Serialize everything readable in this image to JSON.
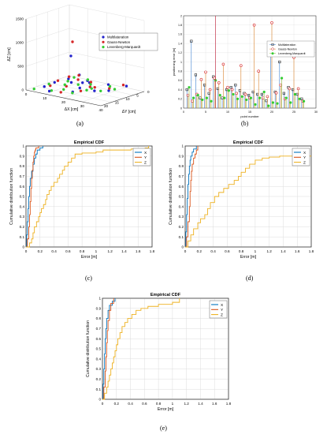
{
  "captions": {
    "a": "(a)",
    "b": "(b)",
    "c": "(c)",
    "d": "(d)",
    "e": "(e)"
  },
  "colors": {
    "multilateration": "#2222cc",
    "gauss_newton": "#d62728",
    "levenberg": "#33cc33",
    "cdf_x": "#0072bd",
    "cdf_y": "#d95319",
    "cdf_z": "#edb120"
  },
  "chart_data": [
    {
      "id": "a",
      "type": "scatter",
      "xlabel": "ΔX [cm]",
      "ylabel": "ΔY [cm]",
      "zlabel": "ΔZ [cm]",
      "xticks": [
        "0",
        "10",
        "20",
        "30",
        "40"
      ],
      "yticks": [
        "0",
        "5",
        "10",
        "15",
        "20"
      ],
      "zticks": [
        "0",
        "500",
        "1000",
        "1500"
      ],
      "xlim": [
        0,
        40
      ],
      "ylim": [
        0,
        20
      ],
      "zlim": [
        0,
        1500
      ],
      "legend_position": "top-right",
      "series": [
        {
          "name": "Multilateration",
          "points": [
            [
              2,
              1,
              450
            ],
            [
              10,
              4,
              160
            ],
            [
              20,
              8,
              140
            ],
            [
              34,
              3,
              110
            ],
            [
              6,
              12,
              90
            ],
            [
              14,
              6,
              60
            ],
            [
              25,
              10,
              40
            ],
            [
              4,
              15,
              30
            ],
            [
              12,
              2,
              25
            ],
            [
              18,
              14,
              20
            ],
            [
              8,
              6,
              15
            ],
            [
              16,
              9,
              10
            ],
            [
              3,
              3,
              5
            ],
            [
              28,
              6,
              8
            ],
            [
              22,
              1,
              12
            ],
            [
              9,
              17,
              6
            ]
          ]
        },
        {
          "name": "Gauss-Newton",
          "points": [
            [
              4,
              2,
              780
            ],
            [
              12,
              6,
              200
            ],
            [
              24,
              9,
              90
            ],
            [
              30,
              1,
              70
            ],
            [
              6,
              14,
              50
            ],
            [
              15,
              3,
              35
            ],
            [
              20,
              12,
              25
            ],
            [
              2,
              7,
              18
            ],
            [
              10,
              10,
              12
            ],
            [
              26,
              4,
              10
            ],
            [
              14,
              16,
              8
            ],
            [
              7,
              2,
              6
            ],
            [
              18,
              6,
              4
            ],
            [
              1,
              1,
              3
            ]
          ]
        },
        {
          "name": "Levenberg-Marquardt",
          "points": [
            [
              6,
              3,
              60
            ],
            [
              14,
              8,
              50
            ],
            [
              22,
              11,
              45
            ],
            [
              30,
              5,
              40
            ],
            [
              3,
              12,
              30
            ],
            [
              11,
              1,
              25
            ],
            [
              19,
              15,
              20
            ],
            [
              26,
              8,
              15
            ],
            [
              8,
              9,
              12
            ],
            [
              16,
              4,
              10
            ],
            [
              2,
              18,
              8
            ],
            [
              24,
              2,
              6
            ],
            [
              12,
              13,
              5
            ],
            [
              5,
              5,
              3
            ],
            [
              20,
              7,
              2
            ],
            [
              9,
              16,
              2
            ]
          ]
        }
      ]
    },
    {
      "id": "b",
      "type": "scatter",
      "xlabel": "point number",
      "ylabel": "positioning error [m]",
      "xlim": [
        0,
        30
      ],
      "ylim": [
        0,
        2
      ],
      "xticks": [
        "0",
        "5",
        "10",
        "15",
        "20",
        "25",
        "30"
      ],
      "yticks": [
        "0",
        "0.2",
        "0.4",
        "0.6",
        "0.8",
        "1",
        "1.2",
        "1.4",
        "1.6",
        "1.8",
        "2"
      ],
      "grid": true,
      "legend_position": "top-right",
      "series": [
        {
          "name": "Multilateration",
          "values": [
            [
              1,
              0.4
            ],
            [
              2,
              1.45
            ],
            [
              3,
              0.72
            ],
            [
              4,
              0.22
            ],
            [
              5,
              0.5
            ],
            [
              6,
              0.32
            ],
            [
              7,
              0.68
            ],
            [
              8,
              0.42
            ],
            [
              9,
              0.22
            ],
            [
              10,
              0.4
            ],
            [
              11,
              0.45
            ],
            [
              12,
              0.5
            ],
            [
              13,
              0.38
            ],
            [
              14,
              0.32
            ],
            [
              15,
              0.28
            ],
            [
              16,
              0.35
            ],
            [
              17,
              0.3
            ],
            [
              18,
              0.3
            ],
            [
              19,
              0.16
            ],
            [
              20,
              1.25
            ],
            [
              21,
              0.35
            ],
            [
              22,
              1.0
            ],
            [
              23,
              0.32
            ],
            [
              24,
              0.45
            ],
            [
              25,
              0.4
            ],
            [
              26,
              0.3
            ],
            [
              27,
              0.2
            ]
          ]
        },
        {
          "name": "Gauss-Newton",
          "values": [
            [
              1,
              0.28
            ],
            [
              2,
              0.15
            ],
            [
              3,
              0.3
            ],
            [
              4,
              0.62
            ],
            [
              5,
              0.78
            ],
            [
              6,
              0.4
            ],
            [
              7,
              0.65
            ],
            [
              8,
              0.55
            ],
            [
              9,
              0.95
            ],
            [
              10,
              0.45
            ],
            [
              11,
              0.4
            ],
            [
              12,
              0.32
            ],
            [
              13,
              0.92
            ],
            [
              14,
              0.3
            ],
            [
              15,
              0.22
            ],
            [
              16,
              1.8
            ],
            [
              17,
              0.8
            ],
            [
              18,
              0.22
            ],
            [
              19,
              0.25
            ],
            [
              20,
              1.85
            ],
            [
              21,
              0.33
            ],
            [
              22,
              0.5
            ],
            [
              23,
              0.2
            ],
            [
              24,
              0.42
            ],
            [
              25,
              1.1
            ],
            [
              26,
              0.42
            ],
            [
              27,
              0.15
            ]
          ]
        },
        {
          "name": "Levenberg-Marquardt",
          "values": [
            [
              1,
              0.45
            ],
            [
              2,
              0.22
            ],
            [
              3,
              0.28
            ],
            [
              4,
              0.18
            ],
            [
              5,
              0.22
            ],
            [
              6,
              0.15
            ],
            [
              7,
              0.6
            ],
            [
              8,
              0.28
            ],
            [
              9,
              0.22
            ],
            [
              10,
              0.38
            ],
            [
              11,
              0.3
            ],
            [
              12,
              0.2
            ],
            [
              13,
              0.25
            ],
            [
              14,
              0.18
            ],
            [
              15,
              0.22
            ],
            [
              16,
              0.08
            ],
            [
              17,
              0.22
            ],
            [
              18,
              0.35
            ],
            [
              19,
              0.05
            ],
            [
              20,
              0.12
            ],
            [
              21,
              0.1
            ],
            [
              22,
              0.65
            ],
            [
              23,
              0.22
            ],
            [
              24,
              0.12
            ],
            [
              25,
              0.3
            ],
            [
              26,
              0.2
            ],
            [
              27,
              0.15
            ]
          ]
        }
      ]
    },
    {
      "id": "c",
      "type": "line",
      "title": "Empirical CDF",
      "xlabel": "Error [m]",
      "ylabel": "Cumulative distribution function",
      "xlim": [
        0,
        1.8
      ],
      "ylim": [
        0,
        1
      ],
      "xticks": [
        "0",
        "0.2",
        "0.4",
        "0.6",
        "0.8",
        "1",
        "1.2",
        "1.4",
        "1.6",
        "1.8"
      ],
      "yticks": [
        "0",
        "0.1",
        "0.2",
        "0.3",
        "0.4",
        "0.5",
        "0.6",
        "0.7",
        "0.8",
        "0.9",
        "1"
      ],
      "grid": true,
      "legend_position": "top-right",
      "series": [
        {
          "name": "X",
          "x": [
            0,
            0.01,
            0.02,
            0.03,
            0.04,
            0.05,
            0.06,
            0.08,
            0.1,
            0.12,
            0.14,
            0.16,
            0.2,
            0.24
          ],
          "y": [
            0,
            0.12,
            0.25,
            0.38,
            0.5,
            0.6,
            0.68,
            0.75,
            0.82,
            0.88,
            0.92,
            0.96,
            0.98,
            1
          ]
        },
        {
          "name": "Y",
          "x": [
            0,
            0.02,
            0.04,
            0.05,
            0.06,
            0.07,
            0.08,
            0.09,
            0.1,
            0.11,
            0.12,
            0.13,
            0.14,
            0.18
          ],
          "y": [
            0,
            0.08,
            0.2,
            0.32,
            0.45,
            0.58,
            0.68,
            0.76,
            0.84,
            0.9,
            0.94,
            0.96,
            0.98,
            1
          ]
        },
        {
          "name": "Z",
          "x": [
            0,
            0.05,
            0.08,
            0.1,
            0.12,
            0.15,
            0.18,
            0.2,
            0.22,
            0.25,
            0.28,
            0.3,
            0.33,
            0.36,
            0.4,
            0.45,
            0.48,
            0.52,
            0.55,
            0.6,
            0.65,
            0.7,
            0.8,
            1.0,
            1.1,
            1.5,
            1.7,
            1.75
          ],
          "y": [
            0,
            0.04,
            0.08,
            0.14,
            0.2,
            0.25,
            0.3,
            0.34,
            0.38,
            0.42,
            0.47,
            0.52,
            0.56,
            0.6,
            0.64,
            0.68,
            0.72,
            0.76,
            0.8,
            0.84,
            0.88,
            0.92,
            0.93,
            0.94,
            0.96,
            0.97,
            0.98,
            1
          ]
        }
      ]
    },
    {
      "id": "d",
      "type": "line",
      "title": "Empirical CDF",
      "xlabel": "Error [m]",
      "ylabel": "Cumulative distribution function",
      "xlim": [
        0,
        1.8
      ],
      "ylim": [
        0,
        1
      ],
      "xticks": [
        "0",
        "0.2",
        "0.4",
        "0.6",
        "0.8",
        "1",
        "1.2",
        "1.4",
        "1.6",
        "1.8"
      ],
      "yticks": [
        "0",
        "0.1",
        "0.2",
        "0.3",
        "0.4",
        "0.5",
        "0.6",
        "0.7",
        "0.8",
        "0.9",
        "1"
      ],
      "grid": true,
      "legend_position": "top-right",
      "series": [
        {
          "name": "X",
          "x": [
            0,
            0.01,
            0.02,
            0.03,
            0.04,
            0.05,
            0.06,
            0.07,
            0.08,
            0.1,
            0.12,
            0.16
          ],
          "y": [
            0,
            0.15,
            0.32,
            0.48,
            0.62,
            0.72,
            0.8,
            0.86,
            0.9,
            0.94,
            0.97,
            1
          ]
        },
        {
          "name": "Y",
          "x": [
            0,
            0.02,
            0.04,
            0.06,
            0.07,
            0.08,
            0.09,
            0.1,
            0.12,
            0.14,
            0.16,
            0.18
          ],
          "y": [
            0,
            0.1,
            0.25,
            0.4,
            0.55,
            0.66,
            0.75,
            0.82,
            0.88,
            0.92,
            0.96,
            1
          ]
        },
        {
          "name": "Z",
          "x": [
            0,
            0.04,
            0.08,
            0.12,
            0.18,
            0.22,
            0.28,
            0.32,
            0.36,
            0.42,
            0.48,
            0.55,
            0.62,
            0.7,
            0.76,
            0.8,
            0.86,
            0.92,
            1.0,
            1.1,
            1.2,
            1.35,
            1.8
          ],
          "y": [
            0,
            0.06,
            0.12,
            0.18,
            0.24,
            0.28,
            0.32,
            0.38,
            0.44,
            0.5,
            0.54,
            0.58,
            0.62,
            0.66,
            0.7,
            0.74,
            0.78,
            0.82,
            0.86,
            0.88,
            0.89,
            0.9,
            0.9
          ]
        }
      ]
    },
    {
      "id": "e",
      "type": "line",
      "title": "Empirical CDF",
      "xlabel": "Error [m]",
      "ylabel": "Cumulative distribution function",
      "xlim": [
        0,
        1.8
      ],
      "ylim": [
        0,
        1
      ],
      "xticks": [
        "0",
        "0.2",
        "0.4",
        "0.6",
        "0.8",
        "1",
        "1.2",
        "1.4",
        "1.6",
        "1.8"
      ],
      "yticks": [
        "0",
        "0.1",
        "0.2",
        "0.3",
        "0.4",
        "0.5",
        "0.6",
        "0.7",
        "0.8",
        "0.9",
        "1"
      ],
      "grid": true,
      "legend_position": "top-right",
      "series": [
        {
          "name": "X",
          "x": [
            0,
            0.01,
            0.02,
            0.03,
            0.04,
            0.05,
            0.06,
            0.08,
            0.1,
            0.14,
            0.18
          ],
          "y": [
            0,
            0.15,
            0.3,
            0.45,
            0.6,
            0.7,
            0.8,
            0.88,
            0.93,
            0.97,
            1
          ]
        },
        {
          "name": "Y",
          "x": [
            0,
            0.02,
            0.04,
            0.05,
            0.06,
            0.07,
            0.08,
            0.1,
            0.12,
            0.16
          ],
          "y": [
            0,
            0.12,
            0.28,
            0.42,
            0.56,
            0.68,
            0.78,
            0.88,
            0.95,
            1
          ]
        },
        {
          "name": "Z",
          "x": [
            0,
            0.03,
            0.06,
            0.08,
            0.1,
            0.12,
            0.14,
            0.16,
            0.18,
            0.2,
            0.22,
            0.25,
            0.28,
            0.32,
            0.36,
            0.42,
            0.48,
            0.55,
            0.65,
            0.8,
            1.0,
            1.1
          ],
          "y": [
            0,
            0.06,
            0.12,
            0.18,
            0.24,
            0.3,
            0.36,
            0.42,
            0.48,
            0.54,
            0.6,
            0.66,
            0.72,
            0.76,
            0.8,
            0.84,
            0.88,
            0.9,
            0.92,
            0.94,
            0.96,
            1
          ]
        }
      ]
    }
  ]
}
